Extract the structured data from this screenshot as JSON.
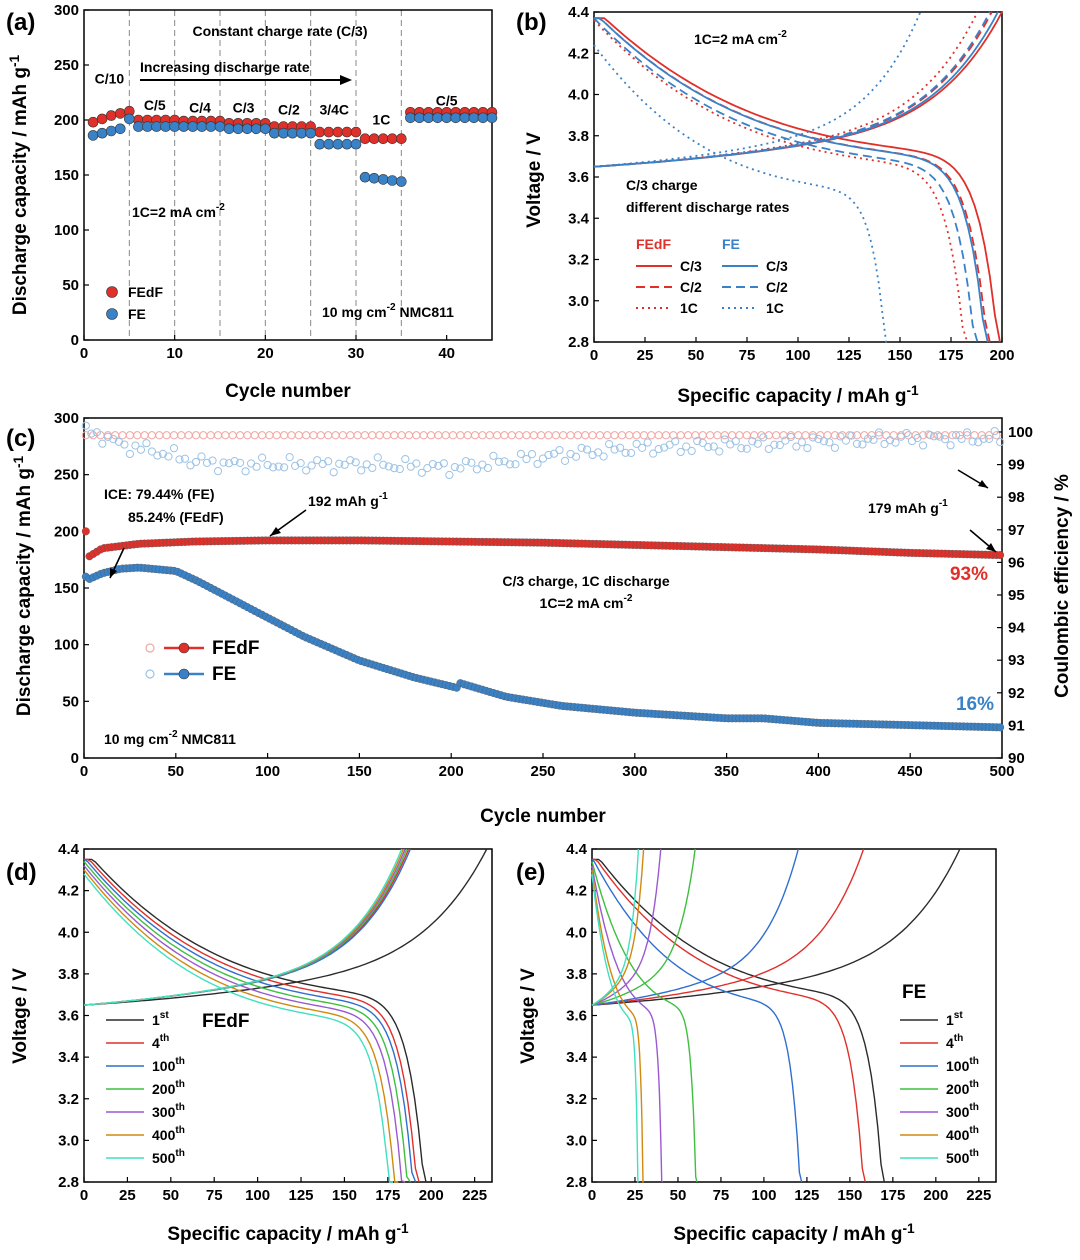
{
  "chart_data": [
    {
      "id": "a",
      "panel_label": "(a)",
      "type": "scatter",
      "xlabel": "Cycle number",
      "ylabel": "Discharge capacity / mAh g-1",
      "xlim": [
        0,
        45
      ],
      "ylim": [
        0,
        300
      ],
      "x_ticks": [
        "0",
        "10",
        "20",
        "30",
        "40"
      ],
      "y_ticks": [
        "0",
        "50",
        "100",
        "150",
        "200",
        "250",
        "300"
      ],
      "title_annotation": "Constant charge rate (C/3)",
      "arrow_annotation": "Increasing discharge rate",
      "rate_note": "1C=2 mA cm-2",
      "loading_note": "10 mg cm-2 NMC811",
      "dividers": [
        5,
        10,
        15,
        20,
        25,
        30,
        35
      ],
      "rate_labels": [
        {
          "text": "C/10",
          "x": 2.8,
          "y": 233
        },
        {
          "text": "C/5",
          "x": 7.8,
          "y": 209
        },
        {
          "text": "C/4",
          "x": 12.8,
          "y": 207
        },
        {
          "text": "C/3",
          "x": 17.6,
          "y": 207
        },
        {
          "text": "C/2",
          "x": 22.6,
          "y": 205
        },
        {
          "text": "3/4C",
          "x": 27.6,
          "y": 205
        },
        {
          "text": "1C",
          "x": 32.8,
          "y": 196
        },
        {
          "text": "C/5",
          "x": 40,
          "y": 213
        }
      ],
      "series": [
        {
          "name": "FEdF",
          "color": "#e0302a",
          "x": [
            1,
            2,
            3,
            4,
            5,
            6,
            7,
            8,
            9,
            10,
            11,
            12,
            13,
            14,
            15,
            16,
            17,
            18,
            19,
            20,
            21,
            22,
            23,
            24,
            25,
            26,
            27,
            28,
            29,
            30,
            31,
            32,
            33,
            34,
            35,
            36,
            37,
            38,
            39,
            40,
            41,
            42,
            43,
            44,
            45
          ],
          "values": [
            198,
            201,
            204,
            206,
            208,
            200,
            200,
            200,
            200,
            200,
            199,
            199,
            199,
            199,
            199,
            197,
            197,
            197,
            197,
            197,
            194,
            194,
            194,
            194,
            194,
            189,
            189,
            189,
            189,
            189,
            183,
            183,
            183,
            183,
            183,
            207,
            207,
            207,
            207,
            207,
            207,
            207,
            207,
            207,
            207
          ]
        },
        {
          "name": "FE",
          "color": "#3a82c8",
          "x": [
            1,
            2,
            3,
            4,
            5,
            6,
            7,
            8,
            9,
            10,
            11,
            12,
            13,
            14,
            15,
            16,
            17,
            18,
            19,
            20,
            21,
            22,
            23,
            24,
            25,
            26,
            27,
            28,
            29,
            30,
            31,
            32,
            33,
            34,
            35,
            36,
            37,
            38,
            39,
            40,
            41,
            42,
            43,
            44,
            45
          ],
          "values": [
            186,
            188,
            190,
            192,
            201,
            194,
            194,
            194,
            194,
            194,
            194,
            194,
            194,
            194,
            194,
            192,
            192,
            192,
            192,
            192,
            188,
            188,
            188,
            188,
            188,
            178,
            178,
            178,
            178,
            178,
            148,
            147,
            146,
            145,
            144,
            202,
            202,
            202,
            202,
            202,
            202,
            202,
            202,
            202,
            202
          ]
        }
      ]
    },
    {
      "id": "b",
      "panel_label": "(b)",
      "type": "line",
      "xlabel": "Specific capacity / mAh g-1",
      "ylabel": "Voltage / V",
      "xlim": [
        0,
        200
      ],
      "ylim": [
        2.8,
        4.4
      ],
      "x_ticks": [
        "0",
        "25",
        "50",
        "75",
        "100",
        "125",
        "150",
        "175",
        "200"
      ],
      "y_ticks": [
        "2.8",
        "3.0",
        "3.2",
        "3.4",
        "3.6",
        "3.8",
        "4.0",
        "4.2",
        "4.4"
      ],
      "rate_note": "1C=2 mA cm-2",
      "condition_note_1": "C/3 charge",
      "condition_note_2": "different discharge rates",
      "legend_groups": [
        "FEdF",
        "FE"
      ],
      "legend_items": [
        "C/3",
        "C/2",
        "1C"
      ],
      "series": [
        {
          "name": "FEdF C/3",
          "color": "#e0302a",
          "dash": "solid",
          "charge_capacity": 200,
          "discharge_capacity": 199,
          "discharge_plateau": 3.68
        },
        {
          "name": "FEdF C/2",
          "color": "#e0302a",
          "dash": "dashed",
          "charge_capacity": 195,
          "discharge_capacity": 194,
          "discharge_plateau": 3.66
        },
        {
          "name": "FEdF 1C",
          "color": "#e0302a",
          "dash": "dotted",
          "charge_capacity": 188,
          "discharge_capacity": 183,
          "discharge_plateau": 3.62
        },
        {
          "name": "FE C/3",
          "color": "#3a82c8",
          "dash": "solid",
          "charge_capacity": 198,
          "discharge_capacity": 193,
          "discharge_plateau": 3.66
        },
        {
          "name": "FE C/2",
          "color": "#3a82c8",
          "dash": "dashed",
          "charge_capacity": 194,
          "discharge_capacity": 188,
          "discharge_plateau": 3.63
        },
        {
          "name": "FE 1C",
          "color": "#3a82c8",
          "dash": "dotted",
          "charge_capacity": 160,
          "discharge_capacity": 145,
          "discharge_plateau": 3.5
        }
      ]
    },
    {
      "id": "c",
      "panel_label": "(c)",
      "type": "scatter",
      "xlabel": "Cycle number",
      "ylabel": "Discharge capacity / mAh g-1",
      "y2label": "Coulombic efficiency / %",
      "xlim": [
        0,
        500
      ],
      "ylim": [
        0,
        300
      ],
      "y2lim": [
        90,
        100
      ],
      "x_ticks": [
        "0",
        "50",
        "100",
        "150",
        "200",
        "250",
        "300",
        "350",
        "400",
        "450",
        "500"
      ],
      "y_ticks": [
        "0",
        "50",
        "100",
        "150",
        "200",
        "250",
        "300"
      ],
      "y2_ticks": [
        "90",
        "91",
        "92",
        "93",
        "94",
        "95",
        "96",
        "97",
        "98",
        "99",
        "100"
      ],
      "ice_line_1": "ICE: 79.44% (FE)",
      "ice_line_2": "85.24% (FEdF)",
      "peak_annotation": "192 mAh g-1",
      "end_annotation": "179 mAh g-1",
      "condition_line_1": "C/3 charge, 1C discharge",
      "condition_line_2": "1C=2 mA cm-2",
      "retention_fedf": "93%",
      "retention_fe": "16%",
      "loading_note": "10 mg cm-2 NMC811",
      "series": [
        {
          "name": "FEdF",
          "color": "#e0302a",
          "capacity_x": [
            1,
            3,
            10,
            30,
            60,
            100,
            150,
            200,
            250,
            300,
            350,
            400,
            450,
            500
          ],
          "capacity_values": [
            200,
            178,
            185,
            189,
            191,
            192,
            192,
            191,
            190,
            188,
            186,
            184,
            181,
            179
          ],
          "ce_x": [
            5,
            50,
            100,
            200,
            300,
            400,
            500
          ],
          "ce_values": [
            99.9,
            99.9,
            99.9,
            99.9,
            99.9,
            99.9,
            99.9
          ]
        },
        {
          "name": "FE",
          "color": "#3a82c8",
          "capacity_x": [
            1,
            3,
            10,
            20,
            30,
            50,
            62,
            75,
            95,
            120,
            150,
            180,
            203,
            205,
            230,
            260,
            300,
            350,
            370,
            400,
            450,
            500
          ],
          "capacity_values": [
            160,
            158,
            163,
            167,
            168,
            165,
            156,
            145,
            128,
            107,
            86,
            71,
            62,
            66,
            54,
            46,
            40,
            35,
            35,
            31,
            29,
            27
          ],
          "ce_x": [
            5,
            20,
            40,
            60,
            80,
            100,
            130,
            160,
            200,
            230,
            260,
            300,
            350,
            400,
            450,
            500
          ],
          "ce_values": [
            100,
            99.6,
            99.4,
            99.1,
            99.0,
            99.0,
            99.0,
            99.0,
            98.9,
            99.1,
            99.3,
            99.5,
            99.6,
            99.7,
            99.8,
            99.8
          ]
        }
      ]
    },
    {
      "id": "d",
      "panel_label": "(d)",
      "type": "line",
      "xlabel": "Specific capacity / mAh g-1",
      "ylabel": "Voltage / V",
      "xlim": [
        0,
        235
      ],
      "ylim": [
        2.8,
        4.4
      ],
      "x_ticks": [
        "0",
        "25",
        "50",
        "75",
        "100",
        "125",
        "150",
        "175",
        "200",
        "225"
      ],
      "y_ticks": [
        "2.8",
        "3.0",
        "3.2",
        "3.4",
        "3.6",
        "3.8",
        "4.0",
        "4.2",
        "4.4"
      ],
      "legend_title": "FEdF",
      "series": [
        {
          "name": "1",
          "suffix": "st",
          "color": "#2b2b2b",
          "charge_capacity": 232,
          "discharge_capacity": 197
        },
        {
          "name": "4",
          "suffix": "th",
          "color": "#e0302a",
          "charge_capacity": 187,
          "discharge_capacity": 193
        },
        {
          "name": "100",
          "suffix": "th",
          "color": "#2f6fd0",
          "charge_capacity": 188,
          "discharge_capacity": 191
        },
        {
          "name": "200",
          "suffix": "th",
          "color": "#3fbf3f",
          "charge_capacity": 186,
          "discharge_capacity": 188
        },
        {
          "name": "300",
          "suffix": "th",
          "color": "#9b59d0",
          "charge_capacity": 185,
          "discharge_capacity": 185
        },
        {
          "name": "400",
          "suffix": "th",
          "color": "#d08a10",
          "charge_capacity": 184,
          "discharge_capacity": 181
        },
        {
          "name": "500",
          "suffix": "th",
          "color": "#40e0c0",
          "charge_capacity": 183,
          "discharge_capacity": 178
        }
      ]
    },
    {
      "id": "e",
      "panel_label": "(e)",
      "type": "line",
      "xlabel": "Specific capacity / mAh g-1",
      "ylabel": "Voltage / V",
      "xlim": [
        0,
        235
      ],
      "ylim": [
        2.8,
        4.4
      ],
      "x_ticks": [
        "0",
        "25",
        "50",
        "75",
        "100",
        "125",
        "150",
        "175",
        "200",
        "225"
      ],
      "y_ticks": [
        "2.8",
        "3.0",
        "3.2",
        "3.4",
        "3.6",
        "3.8",
        "4.0",
        "4.2",
        "4.4"
      ],
      "legend_title": "FE",
      "series": [
        {
          "name": "1",
          "suffix": "st",
          "color": "#2b2b2b",
          "charge_capacity": 214,
          "discharge_capacity": 170
        },
        {
          "name": "4",
          "suffix": "th",
          "color": "#e0302a",
          "charge_capacity": 158,
          "discharge_capacity": 159
        },
        {
          "name": "100",
          "suffix": "th",
          "color": "#2f6fd0",
          "charge_capacity": 120,
          "discharge_capacity": 122
        },
        {
          "name": "200",
          "suffix": "th",
          "color": "#3fbf3f",
          "charge_capacity": 60,
          "discharge_capacity": 61
        },
        {
          "name": "300",
          "suffix": "th",
          "color": "#9b59d0",
          "charge_capacity": 40,
          "discharge_capacity": 41
        },
        {
          "name": "400",
          "suffix": "th",
          "color": "#d08a10",
          "charge_capacity": 30,
          "discharge_capacity": 30
        },
        {
          "name": "500",
          "suffix": "th",
          "color": "#40e0c0",
          "charge_capacity": 27,
          "discharge_capacity": 27
        }
      ]
    }
  ]
}
